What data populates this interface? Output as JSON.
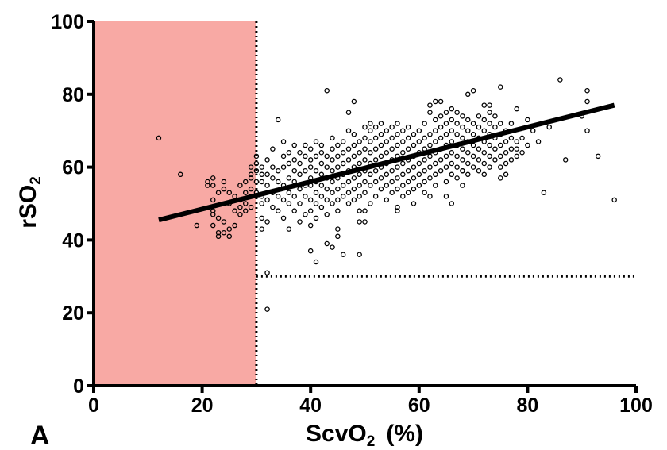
{
  "chart_data": {
    "type": "scatter",
    "panel_label": "A",
    "xlabel": {
      "main": "ScvO",
      "sub": "2",
      "suffix": "(%)"
    },
    "ylabel": {
      "main": "rSO",
      "sub": "2"
    },
    "xlim": [
      0,
      100
    ],
    "ylim": [
      0,
      100
    ],
    "xticks": [
      0,
      20,
      40,
      60,
      80,
      100
    ],
    "yticks": [
      0,
      20,
      40,
      60,
      80,
      100
    ],
    "grid": false,
    "shaded_region": {
      "x0": 0,
      "x1": 30,
      "y0": 0,
      "y1": 100,
      "color": "#f8a9a4"
    },
    "threshold_lines": [
      {
        "orientation": "vertical",
        "value": 30,
        "style": "dotted"
      },
      {
        "orientation": "horizontal",
        "value": 30,
        "from_x": 30,
        "style": "dotted"
      }
    ],
    "regression_line": {
      "x": [
        12,
        96
      ],
      "y": [
        45.5,
        77
      ]
    },
    "marker_color": "#000000",
    "points": [
      [
        12,
        68
      ],
      [
        16,
        58
      ],
      [
        19,
        44
      ],
      [
        21,
        56
      ],
      [
        21,
        55
      ],
      [
        22,
        51
      ],
      [
        22,
        48
      ],
      [
        22,
        47
      ],
      [
        22,
        44
      ],
      [
        22,
        55
      ],
      [
        22,
        57
      ],
      [
        23,
        53
      ],
      [
        23,
        46
      ],
      [
        23,
        42
      ],
      [
        23,
        41
      ],
      [
        24,
        42
      ],
      [
        24,
        45
      ],
      [
        24,
        54
      ],
      [
        24,
        56
      ],
      [
        25,
        41
      ],
      [
        25,
        43
      ],
      [
        25,
        50
      ],
      [
        25,
        53
      ],
      [
        26,
        48
      ],
      [
        26,
        44
      ],
      [
        26,
        52
      ],
      [
        27,
        47
      ],
      [
        27,
        51
      ],
      [
        27,
        49
      ],
      [
        27,
        55
      ],
      [
        28,
        48
      ],
      [
        28,
        53
      ],
      [
        28,
        50
      ],
      [
        28,
        56
      ],
      [
        29,
        49
      ],
      [
        29,
        52
      ],
      [
        29,
        54
      ],
      [
        29,
        57
      ],
      [
        29,
        58
      ],
      [
        29,
        60
      ],
      [
        30,
        53
      ],
      [
        30,
        56
      ],
      [
        30,
        59
      ],
      [
        30,
        61
      ],
      [
        30,
        63
      ],
      [
        31,
        50
      ],
      [
        31,
        43
      ],
      [
        31,
        56
      ],
      [
        31,
        60
      ],
      [
        31,
        52
      ],
      [
        31,
        46
      ],
      [
        31,
        58
      ],
      [
        32,
        31
      ],
      [
        32,
        21
      ],
      [
        32,
        45
      ],
      [
        32,
        51
      ],
      [
        32,
        55
      ],
      [
        32,
        62
      ],
      [
        32,
        58
      ],
      [
        33,
        49
      ],
      [
        33,
        53
      ],
      [
        33,
        57
      ],
      [
        33,
        60
      ],
      [
        33,
        65
      ],
      [
        34,
        52
      ],
      [
        34,
        56
      ],
      [
        34,
        59
      ],
      [
        34,
        73
      ],
      [
        34,
        48
      ],
      [
        35,
        46
      ],
      [
        35,
        51
      ],
      [
        35,
        55
      ],
      [
        35,
        60
      ],
      [
        35,
        63
      ],
      [
        35,
        67
      ],
      [
        36,
        50
      ],
      [
        36,
        53
      ],
      [
        36,
        57
      ],
      [
        36,
        61
      ],
      [
        36,
        64
      ],
      [
        36,
        43
      ],
      [
        37,
        48
      ],
      [
        37,
        52
      ],
      [
        37,
        56
      ],
      [
        37,
        59
      ],
      [
        37,
        62
      ],
      [
        37,
        66
      ],
      [
        38,
        45
      ],
      [
        38,
        50
      ],
      [
        38,
        54
      ],
      [
        38,
        58
      ],
      [
        38,
        61
      ],
      [
        38,
        64
      ],
      [
        39,
        47
      ],
      [
        39,
        52
      ],
      [
        39,
        55
      ],
      [
        39,
        59
      ],
      [
        39,
        63
      ],
      [
        39,
        66
      ],
      [
        40,
        37
      ],
      [
        40,
        44
      ],
      [
        40,
        48
      ],
      [
        40,
        51
      ],
      [
        40,
        55
      ],
      [
        40,
        57
      ],
      [
        40,
        60
      ],
      [
        40,
        62
      ],
      [
        40,
        65
      ],
      [
        41,
        34
      ],
      [
        41,
        46
      ],
      [
        41,
        50
      ],
      [
        41,
        53
      ],
      [
        41,
        56
      ],
      [
        41,
        59
      ],
      [
        41,
        63
      ],
      [
        41,
        67
      ],
      [
        42,
        49
      ],
      [
        42,
        52
      ],
      [
        42,
        55
      ],
      [
        42,
        58
      ],
      [
        42,
        61
      ],
      [
        42,
        64
      ],
      [
        42,
        66
      ],
      [
        43,
        39
      ],
      [
        43,
        81
      ],
      [
        43,
        47
      ],
      [
        43,
        51
      ],
      [
        43,
        54
      ],
      [
        43,
        57
      ],
      [
        43,
        60
      ],
      [
        43,
        63
      ],
      [
        44,
        38
      ],
      [
        44,
        50
      ],
      [
        44,
        53
      ],
      [
        44,
        56
      ],
      [
        44,
        59
      ],
      [
        44,
        62
      ],
      [
        44,
        65
      ],
      [
        44,
        68
      ],
      [
        45,
        43
      ],
      [
        45,
        41
      ],
      [
        45,
        48
      ],
      [
        45,
        51
      ],
      [
        45,
        54
      ],
      [
        45,
        57
      ],
      [
        45,
        60
      ],
      [
        45,
        63
      ],
      [
        45,
        66
      ],
      [
        46,
        36
      ],
      [
        46,
        52
      ],
      [
        46,
        55
      ],
      [
        46,
        58
      ],
      [
        46,
        61
      ],
      [
        46,
        64
      ],
      [
        46,
        67
      ],
      [
        47,
        75
      ],
      [
        47,
        50
      ],
      [
        47,
        53
      ],
      [
        47,
        56
      ],
      [
        47,
        59
      ],
      [
        47,
        62
      ],
      [
        47,
        65
      ],
      [
        47,
        70
      ],
      [
        48,
        78
      ],
      [
        48,
        51
      ],
      [
        48,
        54
      ],
      [
        48,
        57
      ],
      [
        48,
        60
      ],
      [
        48,
        63
      ],
      [
        48,
        66
      ],
      [
        48,
        69
      ],
      [
        49,
        36
      ],
      [
        49,
        45
      ],
      [
        49,
        48
      ],
      [
        49,
        52
      ],
      [
        49,
        55
      ],
      [
        49,
        58
      ],
      [
        49,
        61
      ],
      [
        49,
        64
      ],
      [
        49,
        67
      ],
      [
        50,
        45
      ],
      [
        50,
        48
      ],
      [
        50,
        53
      ],
      [
        50,
        56
      ],
      [
        50,
        59
      ],
      [
        50,
        62
      ],
      [
        50,
        65
      ],
      [
        50,
        68
      ],
      [
        50,
        71
      ],
      [
        51,
        50
      ],
      [
        51,
        55
      ],
      [
        51,
        58
      ],
      [
        51,
        61
      ],
      [
        51,
        64
      ],
      [
        51,
        67
      ],
      [
        51,
        70
      ],
      [
        51,
        72
      ],
      [
        52,
        52
      ],
      [
        52,
        56
      ],
      [
        52,
        59
      ],
      [
        52,
        62
      ],
      [
        52,
        65
      ],
      [
        52,
        68
      ],
      [
        52,
        71
      ],
      [
        53,
        54
      ],
      [
        53,
        57
      ],
      [
        53,
        60
      ],
      [
        53,
        63
      ],
      [
        53,
        66
      ],
      [
        53,
        69
      ],
      [
        53,
        72
      ],
      [
        54,
        51
      ],
      [
        54,
        55
      ],
      [
        54,
        58
      ],
      [
        54,
        61
      ],
      [
        54,
        64
      ],
      [
        54,
        67
      ],
      [
        54,
        70
      ],
      [
        55,
        53
      ],
      [
        55,
        56
      ],
      [
        55,
        59
      ],
      [
        55,
        62
      ],
      [
        55,
        65
      ],
      [
        55,
        68
      ],
      [
        55,
        71
      ],
      [
        56,
        49
      ],
      [
        56,
        48
      ],
      [
        56,
        54
      ],
      [
        56,
        57
      ],
      [
        56,
        60
      ],
      [
        56,
        63
      ],
      [
        56,
        66
      ],
      [
        56,
        69
      ],
      [
        56,
        72
      ],
      [
        57,
        52
      ],
      [
        57,
        55
      ],
      [
        57,
        58
      ],
      [
        57,
        61
      ],
      [
        57,
        64
      ],
      [
        57,
        67
      ],
      [
        57,
        70
      ],
      [
        58,
        53
      ],
      [
        58,
        56
      ],
      [
        58,
        59
      ],
      [
        58,
        62
      ],
      [
        58,
        65
      ],
      [
        58,
        68
      ],
      [
        58,
        71
      ],
      [
        59,
        50
      ],
      [
        59,
        54
      ],
      [
        59,
        57
      ],
      [
        59,
        60
      ],
      [
        59,
        63
      ],
      [
        59,
        66
      ],
      [
        59,
        69
      ],
      [
        60,
        55
      ],
      [
        60,
        58
      ],
      [
        60,
        61
      ],
      [
        60,
        64
      ],
      [
        60,
        67
      ],
      [
        60,
        70
      ],
      [
        61,
        53
      ],
      [
        61,
        56
      ],
      [
        61,
        59
      ],
      [
        61,
        62
      ],
      [
        61,
        65
      ],
      [
        61,
        68
      ],
      [
        61,
        72
      ],
      [
        62,
        52
      ],
      [
        62,
        57
      ],
      [
        62,
        60
      ],
      [
        62,
        63
      ],
      [
        62,
        66
      ],
      [
        62,
        69
      ],
      [
        62,
        75
      ],
      [
        62,
        77
      ],
      [
        63,
        55
      ],
      [
        63,
        58
      ],
      [
        63,
        61
      ],
      [
        63,
        64
      ],
      [
        63,
        67
      ],
      [
        63,
        70
      ],
      [
        63,
        73
      ],
      [
        63,
        78
      ],
      [
        64,
        59
      ],
      [
        64,
        62
      ],
      [
        64,
        65
      ],
      [
        64,
        68
      ],
      [
        64,
        71
      ],
      [
        64,
        74
      ],
      [
        64,
        78
      ],
      [
        65,
        52
      ],
      [
        65,
        56
      ],
      [
        65,
        60
      ],
      [
        65,
        63
      ],
      [
        65,
        66
      ],
      [
        65,
        69
      ],
      [
        65,
        72
      ],
      [
        65,
        75
      ],
      [
        66,
        50
      ],
      [
        66,
        58
      ],
      [
        66,
        61
      ],
      [
        66,
        64
      ],
      [
        66,
        67
      ],
      [
        66,
        70
      ],
      [
        66,
        73
      ],
      [
        66,
        76
      ],
      [
        67,
        57
      ],
      [
        67,
        60
      ],
      [
        67,
        63
      ],
      [
        67,
        66
      ],
      [
        67,
        69
      ],
      [
        67,
        72
      ],
      [
        67,
        75
      ],
      [
        68,
        55
      ],
      [
        68,
        59
      ],
      [
        68,
        62
      ],
      [
        68,
        65
      ],
      [
        68,
        68
      ],
      [
        68,
        71
      ],
      [
        68,
        74
      ],
      [
        69,
        58
      ],
      [
        69,
        61
      ],
      [
        69,
        64
      ],
      [
        69,
        67
      ],
      [
        69,
        70
      ],
      [
        69,
        73
      ],
      [
        69,
        80
      ],
      [
        70,
        60
      ],
      [
        70,
        63
      ],
      [
        70,
        66
      ],
      [
        70,
        69
      ],
      [
        70,
        72
      ],
      [
        70,
        81
      ],
      [
        71,
        59
      ],
      [
        71,
        62
      ],
      [
        71,
        65
      ],
      [
        71,
        68
      ],
      [
        71,
        71
      ],
      [
        71,
        74
      ],
      [
        72,
        61
      ],
      [
        72,
        64
      ],
      [
        72,
        67
      ],
      [
        72,
        70
      ],
      [
        72,
        73
      ],
      [
        72,
        77
      ],
      [
        73,
        60
      ],
      [
        73,
        63
      ],
      [
        73,
        66
      ],
      [
        73,
        69
      ],
      [
        73,
        72
      ],
      [
        73,
        75
      ],
      [
        73,
        77
      ],
      [
        74,
        62
      ],
      [
        74,
        65
      ],
      [
        74,
        68
      ],
      [
        74,
        71
      ],
      [
        74,
        74
      ],
      [
        75,
        57
      ],
      [
        75,
        60
      ],
      [
        75,
        63
      ],
      [
        75,
        66
      ],
      [
        75,
        69
      ],
      [
        75,
        72
      ],
      [
        75,
        82
      ],
      [
        76,
        58
      ],
      [
        76,
        61
      ],
      [
        76,
        64
      ],
      [
        76,
        67
      ],
      [
        76,
        70
      ],
      [
        77,
        62
      ],
      [
        77,
        65
      ],
      [
        77,
        68
      ],
      [
        77,
        72
      ],
      [
        78,
        63
      ],
      [
        78,
        67
      ],
      [
        78,
        76
      ],
      [
        79,
        64
      ],
      [
        79,
        68
      ],
      [
        80,
        66
      ],
      [
        80,
        73
      ],
      [
        81,
        70
      ],
      [
        82,
        67
      ],
      [
        83,
        53
      ],
      [
        84,
        71
      ],
      [
        86,
        84
      ],
      [
        87,
        62
      ],
      [
        90,
        74
      ],
      [
        91,
        70
      ],
      [
        91,
        78
      ],
      [
        91,
        81
      ],
      [
        93,
        63
      ],
      [
        96,
        51
      ],
      [
        78,
        65
      ],
      [
        72,
        58
      ],
      [
        68,
        59
      ]
    ]
  }
}
